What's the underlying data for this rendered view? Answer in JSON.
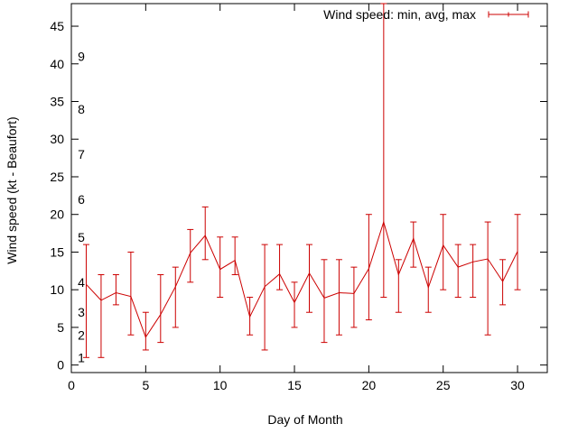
{
  "chart_data": {
    "type": "line-errorbar",
    "title": "",
    "xlabel": "Day of Month",
    "ylabel": "Wind speed (kt - Beaufort)",
    "xlim": [
      0,
      32
    ],
    "ylim": [
      -1,
      48
    ],
    "x_ticks": [
      0,
      5,
      10,
      15,
      20,
      25,
      30
    ],
    "y_ticks": [
      0,
      5,
      10,
      15,
      20,
      25,
      30,
      35,
      40,
      45
    ],
    "beaufort_labels": [
      {
        "label": "1",
        "value": 1
      },
      {
        "label": "2",
        "value": 4
      },
      {
        "label": "3",
        "value": 7
      },
      {
        "label": "4",
        "value": 11
      },
      {
        "label": "5",
        "value": 17
      },
      {
        "label": "6",
        "value": 22
      },
      {
        "label": "7",
        "value": 28
      },
      {
        "label": "8",
        "value": 34
      },
      {
        "label": "9",
        "value": 41
      }
    ],
    "legend": "Wind speed: min, avg, max",
    "legend_position": "top-right",
    "color": "#cc0000",
    "series": [
      {
        "name": "Wind speed: min, avg, max",
        "x": [
          1,
          2,
          3,
          4,
          5,
          6,
          7,
          8,
          9,
          10,
          11,
          12,
          13,
          14,
          15,
          16,
          17,
          18,
          19,
          20,
          21,
          22,
          23,
          24,
          25,
          26,
          27,
          28,
          29,
          30
        ],
        "avg": [
          10.7,
          8.6,
          9.6,
          9.1,
          3.7,
          6.7,
          10.4,
          14.9,
          17.2,
          12.7,
          13.9,
          6.4,
          10.4,
          12.1,
          8.3,
          12.2,
          8.9,
          9.6,
          9.5,
          12.8,
          19.0,
          12.0,
          16.8,
          10.3,
          15.9,
          13.0,
          13.7,
          14.1,
          11.1,
          15.1
        ],
        "min": [
          1,
          1,
          8,
          4,
          2,
          3,
          5,
          11,
          14,
          9,
          12,
          4,
          2,
          10,
          5,
          7,
          3,
          4,
          5,
          6,
          9,
          7,
          13,
          7,
          10,
          9,
          9,
          4,
          8,
          10
        ],
        "max": [
          16,
          12,
          12,
          15,
          7,
          12,
          13,
          18,
          21,
          17,
          17,
          9,
          16,
          16,
          11,
          16,
          14,
          14,
          13,
          20,
          48,
          14,
          19,
          13,
          20,
          16,
          16,
          19,
          14,
          20
        ]
      }
    ]
  }
}
